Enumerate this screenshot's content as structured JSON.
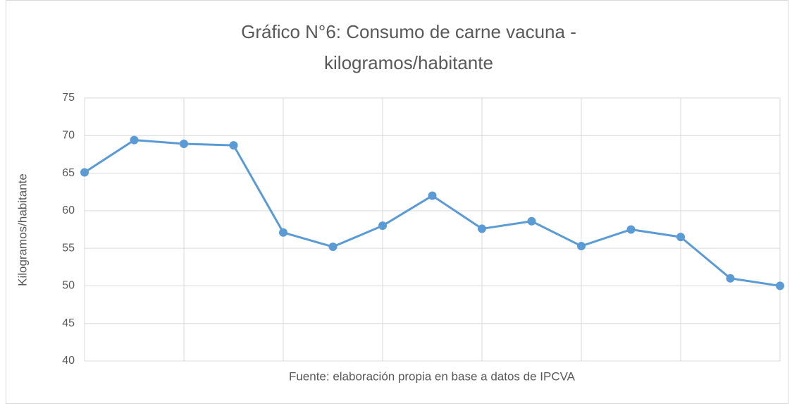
{
  "chart_data": {
    "type": "line",
    "title": [
      "Gráfico N°6: Consumo de carne vacuna -",
      "kilogramos/habitante"
    ],
    "x_label": "Fuente: elaboración propia en base a datos de IPCVA",
    "y_label": "Kilogramos/habitante",
    "categories": [
      null,
      null,
      null,
      null,
      null,
      null,
      null,
      null,
      null,
      null,
      null,
      null,
      null,
      null,
      null
    ],
    "series": [
      {
        "name": "Kilogramos/habitante",
        "color": "#5b9bd5",
        "values": [
          65.1,
          69.4,
          68.9,
          68.7,
          57.1,
          55.2,
          58.0,
          62.0,
          57.6,
          58.6,
          55.3,
          57.5,
          56.5,
          51.0,
          50.0
        ]
      }
    ],
    "ylim": [
      40,
      75
    ],
    "yticks": [
      40,
      45,
      50,
      55,
      60,
      65,
      70,
      75
    ],
    "grid": true
  }
}
